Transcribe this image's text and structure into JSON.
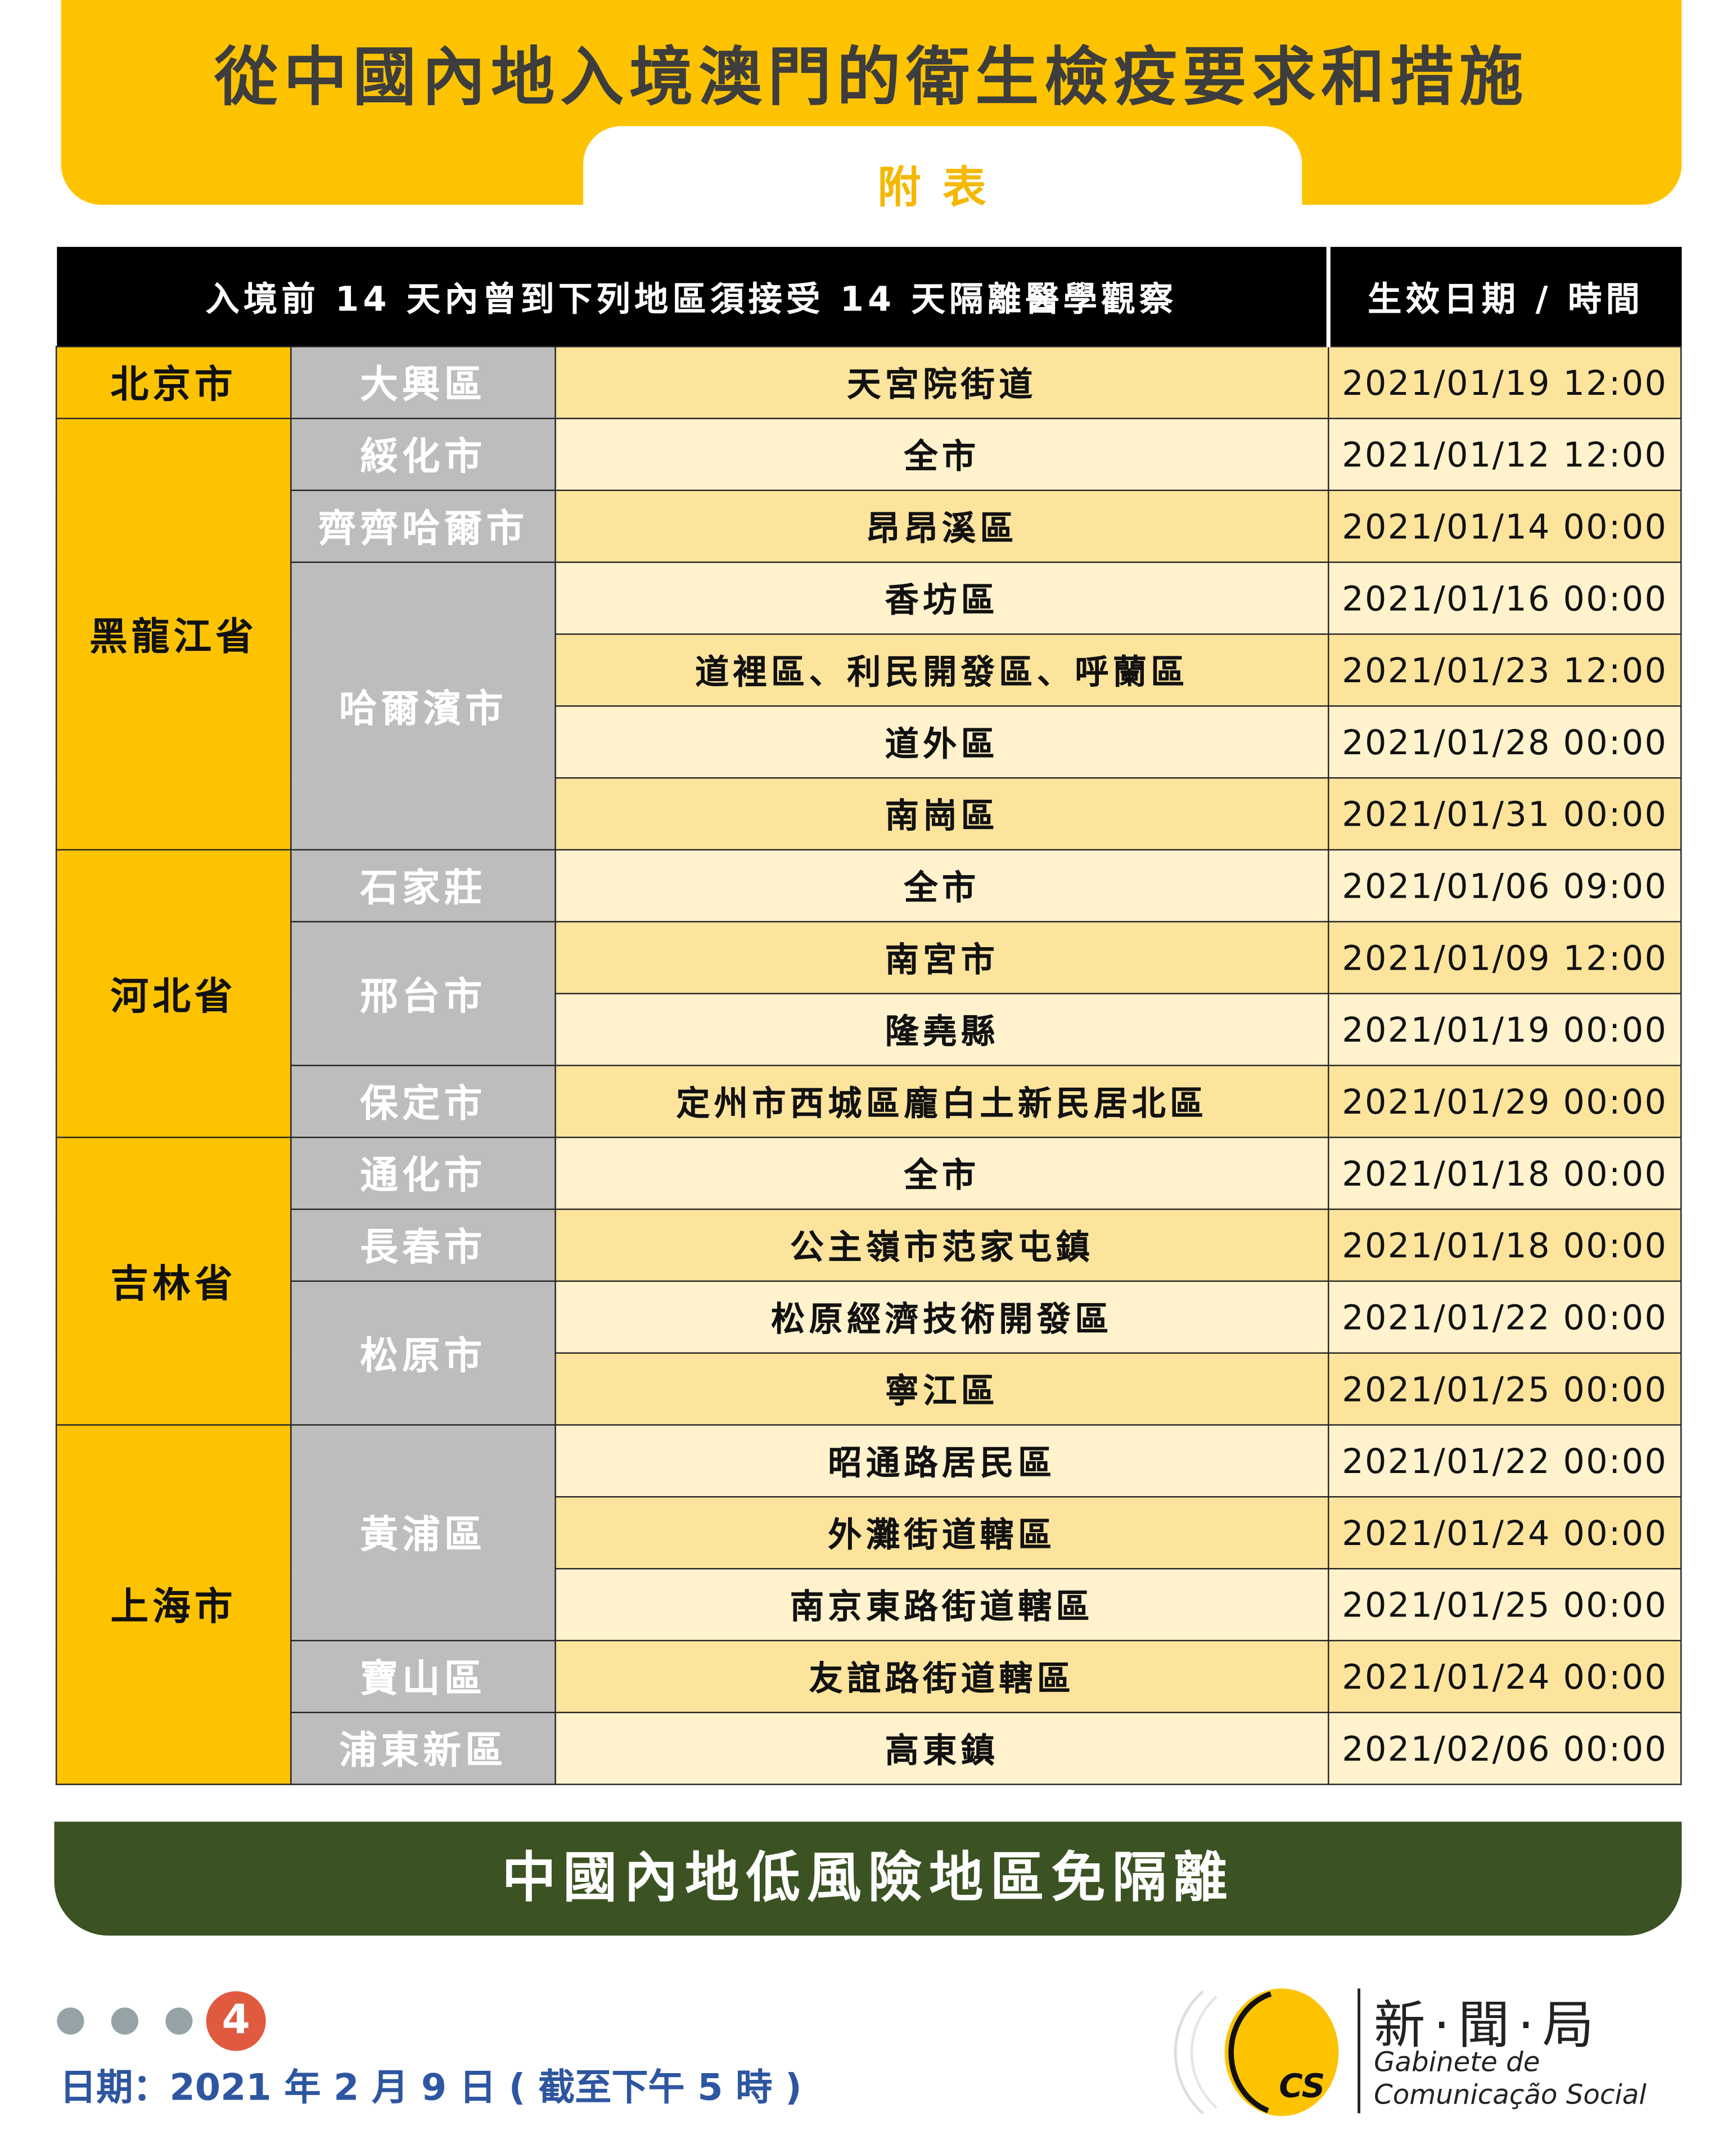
{
  "header": {
    "title": "從中國內地入境澳門的衛生檢疫要求和措施",
    "subtitle": "附表"
  },
  "table": {
    "header_main": "入境前 14 天內曾到下列地區須接受 14 天隔離醫學觀察",
    "header_date": "生效日期 / 時間",
    "provinces": [
      {
        "name": "北京市",
        "cities": [
          {
            "name": "大興區",
            "areas": [
              {
                "name": "天宮院街道",
                "date": "2021/01/19 12:00"
              }
            ]
          }
        ]
      },
      {
        "name": "黑龍江省",
        "cities": [
          {
            "name": "綏化市",
            "areas": [
              {
                "name": "全市",
                "date": "2021/01/12 12:00"
              }
            ]
          },
          {
            "name": "齊齊哈爾市",
            "areas": [
              {
                "name": "昂昂溪區",
                "date": "2021/01/14 00:00"
              }
            ]
          },
          {
            "name": "哈爾濱市",
            "areas": [
              {
                "name": "香坊區",
                "date": "2021/01/16 00:00"
              },
              {
                "name": "道裡區、利民開發區、呼蘭區",
                "date": "2021/01/23 12:00"
              },
              {
                "name": "道外區",
                "date": "2021/01/28 00:00"
              },
              {
                "name": "南崗區",
                "date": "2021/01/31 00:00"
              }
            ]
          }
        ]
      },
      {
        "name": "河北省",
        "cities": [
          {
            "name": "石家莊",
            "areas": [
              {
                "name": "全市",
                "date": "2021/01/06 09:00"
              }
            ]
          },
          {
            "name": "邢台市",
            "areas": [
              {
                "name": "南宮市",
                "date": "2021/01/09 12:00"
              },
              {
                "name": "隆堯縣",
                "date": "2021/01/19 00:00"
              }
            ]
          },
          {
            "name": "保定市",
            "areas": [
              {
                "name": "定州市西城區龐白土新民居北區",
                "date": "2021/01/29 00:00"
              }
            ]
          }
        ]
      },
      {
        "name": "吉林省",
        "cities": [
          {
            "name": "通化市",
            "areas": [
              {
                "name": "全市",
                "date": "2021/01/18 00:00"
              }
            ]
          },
          {
            "name": "長春市",
            "areas": [
              {
                "name": "公主嶺市范家屯鎮",
                "date": "2021/01/18 00:00"
              }
            ]
          },
          {
            "name": "松原市",
            "areas": [
              {
                "name": "松原經濟技術開發區",
                "date": "2021/01/22 00:00"
              },
              {
                "name": "寧江區",
                "date": "2021/01/25 00:00"
              }
            ]
          }
        ]
      },
      {
        "name": "上海市",
        "cities": [
          {
            "name": "黃浦區",
            "areas": [
              {
                "name": "昭通路居民區",
                "date": "2021/01/22 00:00"
              },
              {
                "name": "外灘街道轄區",
                "date": "2021/01/24 00:00"
              },
              {
                "name": "南京東路街道轄區",
                "date": "2021/01/25 00:00"
              }
            ]
          },
          {
            "name": "寶山區",
            "areas": [
              {
                "name": "友誼路街道轄區",
                "date": "2021/01/24 00:00"
              }
            ]
          },
          {
            "name": "浦東新區",
            "areas": [
              {
                "name": "高東鎮",
                "date": "2021/02/06 00:00"
              }
            ]
          }
        ]
      }
    ]
  },
  "banner": {
    "text": "中國內地低風險地區免隔離"
  },
  "footer": {
    "page": "4",
    "date": "日期：2021 年 2 月 9 日 ( 截至下午 5 時 )"
  },
  "logo": {
    "cn": "新·聞·局",
    "pt1": "Gabinete de",
    "pt2": "Comunicação Social",
    "mark": "GCS"
  },
  "colors": {
    "yellow": "#fdc300",
    "green": "#3b5323",
    "gray": "#bdbdbd",
    "blue": "#2e56a0",
    "red": "#e05a40"
  }
}
